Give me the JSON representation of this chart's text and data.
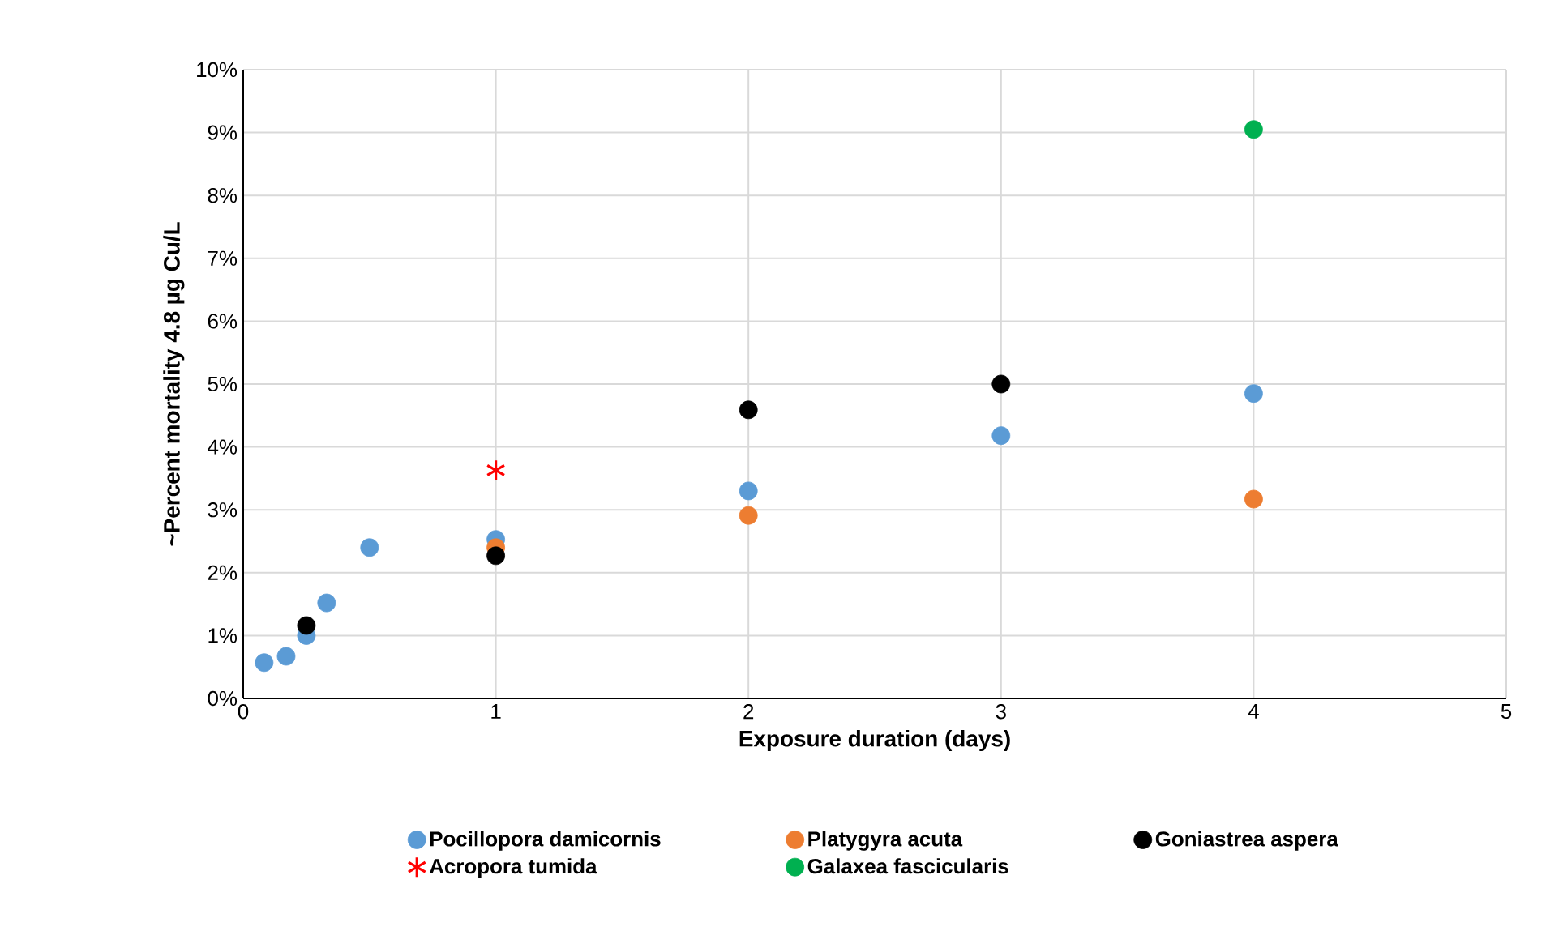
{
  "chart_data": {
    "type": "scatter",
    "xlabel": "Exposure duration (days)",
    "ylabel": "~Percent  mortality 4.8 µg Cu/L",
    "xlim": [
      0,
      5
    ],
    "xticks": [
      0,
      1,
      2,
      3,
      4,
      5
    ],
    "ylim": [
      0,
      10
    ],
    "yticks": [
      {
        "value": 0,
        "label": "0%"
      },
      {
        "value": 1,
        "label": "1%"
      },
      {
        "value": 2,
        "label": "2%"
      },
      {
        "value": 3,
        "label": "3%"
      },
      {
        "value": 4,
        "label": "4%"
      },
      {
        "value": 5,
        "label": "5%"
      },
      {
        "value": 6,
        "label": "6%"
      },
      {
        "value": 7,
        "label": "7%"
      },
      {
        "value": 8,
        "label": "8%"
      },
      {
        "value": 9,
        "label": "9%"
      },
      {
        "value": 10,
        "label": "10%"
      }
    ],
    "grid": true,
    "legend": "bottom",
    "series": [
      {
        "name": "Pocillopora damicornis",
        "color": "#5b9bd5",
        "marker": "circle",
        "x": [
          0.083,
          0.17,
          0.25,
          0.33,
          0.5,
          1,
          2,
          3,
          4
        ],
        "values": [
          0.57,
          0.67,
          1.0,
          1.52,
          2.4,
          2.53,
          3.3,
          4.18,
          4.85
        ]
      },
      {
        "name": "Platygyra acuta",
        "color": "#ed7d31",
        "marker": "circle",
        "x": [
          1,
          2,
          4
        ],
        "values": [
          2.4,
          2.91,
          3.17
        ]
      },
      {
        "name": "Goniastrea aspera",
        "color": "#000000",
        "marker": "circle",
        "x": [
          0.25,
          1,
          2,
          3
        ],
        "values": [
          1.16,
          2.27,
          4.59,
          5.0
        ]
      },
      {
        "name": "Acropora tumida",
        "color": "#ff0000",
        "marker": "cross",
        "x": [
          1
        ],
        "values": [
          3.63
        ]
      },
      {
        "name": "Galaxea fascicularis",
        "color": "#00b050",
        "marker": "circle",
        "x": [
          4
        ],
        "values": [
          9.05
        ]
      }
    ]
  }
}
